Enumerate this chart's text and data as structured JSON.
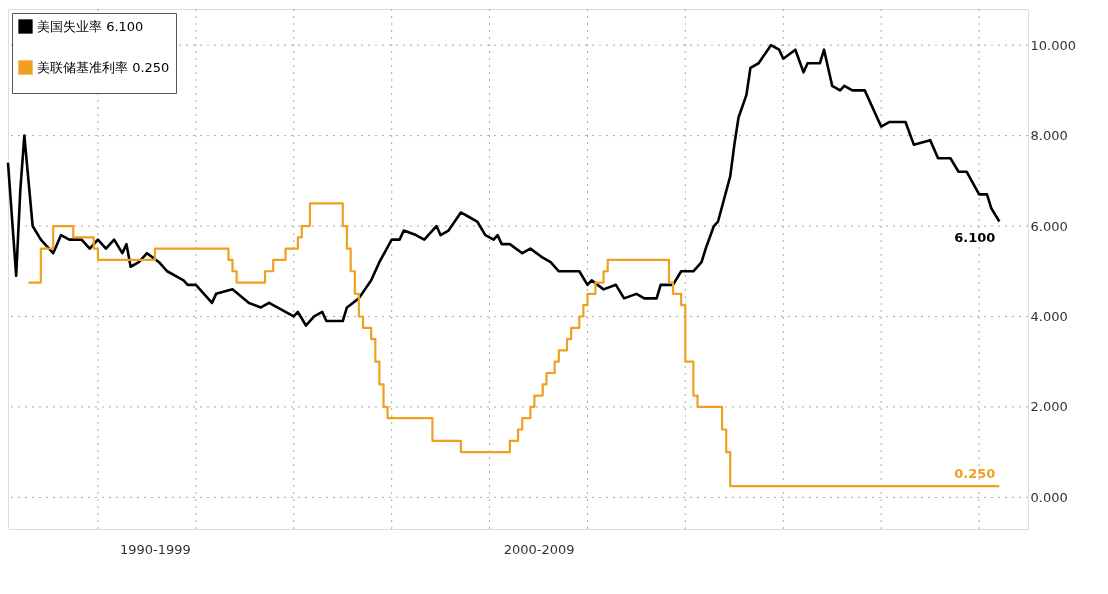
{
  "chart_data": {
    "type": "line",
    "xlim": [
      "1994-03",
      "2015-01"
    ],
    "xticks": [
      {
        "value": "1996",
        "label": null
      },
      {
        "value": "1997-03",
        "label": "1990-1999"
      },
      {
        "value": "1998",
        "label": null
      },
      {
        "value": "2000",
        "label": null
      },
      {
        "value": "2002",
        "label": null
      },
      {
        "value": "2004",
        "label": null
      },
      {
        "value": "2005-01",
        "label": "2000-2009"
      },
      {
        "value": "2006",
        "label": null
      },
      {
        "value": "2008",
        "label": null
      },
      {
        "value": "2010",
        "label": null
      },
      {
        "value": "2012",
        "label": null
      },
      {
        "value": "2014",
        "label": null
      }
    ],
    "ylim": [
      -0.7,
      10.8
    ],
    "yticks": [
      {
        "value": 0,
        "label": "0.000"
      },
      {
        "value": 2,
        "label": "2.000"
      },
      {
        "value": 4,
        "label": "4.000"
      },
      {
        "value": 6,
        "label": "6.000"
      },
      {
        "value": 8,
        "label": "8.000"
      },
      {
        "value": 10,
        "label": "10.000"
      }
    ],
    "grid": true,
    "legend": "top left",
    "line_style": "solid",
    "marker": "none",
    "annotations": [
      {
        "text": "6.100",
        "x": "2014-06",
        "y": 6.1
      },
      {
        "text": "0.250",
        "x": "2014-06",
        "y": 0.25
      }
    ],
    "series": [
      {
        "name": "美国失业率 6.100",
        "color": "#000000",
        "type": "line",
        "x": [
          "1994-03",
          "1994-05",
          "1994-06",
          "1994-07",
          "1994-08",
          "1994-09",
          "1994-11",
          "1995-02",
          "1995-04",
          "1995-06",
          "1995-09",
          "1995-11",
          "1996-01",
          "1996-03",
          "1996-05",
          "1996-07",
          "1996-08",
          "1996-09",
          "1996-11",
          "1997-01",
          "1997-04",
          "1997-06",
          "1997-10",
          "1997-11",
          "1998-01",
          "1998-05",
          "1998-06",
          "1998-10",
          "1999-02",
          "1999-05",
          "1999-07",
          "2000-01",
          "2000-02",
          "2000-04",
          "2000-06",
          "2000-08",
          "2000-09",
          "2001-01",
          "2001-02",
          "2001-05",
          "2001-08",
          "2001-10",
          "2002-01",
          "2002-03",
          "2002-04",
          "2002-07",
          "2002-09",
          "2002-12",
          "2003-01",
          "2003-03",
          "2003-06",
          "2003-08",
          "2003-10",
          "2003-12",
          "2004-02",
          "2004-03",
          "2004-04",
          "2004-06",
          "2004-09",
          "2004-11",
          "2005-02",
          "2005-04",
          "2005-06",
          "2005-08",
          "2005-11",
          "2006-01",
          "2006-02",
          "2006-05",
          "2006-08",
          "2006-10",
          "2007-01",
          "2007-03",
          "2007-06",
          "2007-07",
          "2007-10",
          "2007-12",
          "2008-03",
          "2008-05",
          "2008-06",
          "2008-08",
          "2008-09",
          "2008-12",
          "2009-01",
          "2009-02",
          "2009-04",
          "2009-05",
          "2009-07",
          "2009-10",
          "2009-12",
          "2010-01",
          "2010-04",
          "2010-06",
          "2010-07",
          "2010-10",
          "2010-11",
          "2011-01",
          "2011-03",
          "2011-04",
          "2011-06",
          "2011-09",
          "2012-01",
          "2012-03",
          "2012-07",
          "2012-09",
          "2013-01",
          "2013-03",
          "2013-06",
          "2013-08",
          "2013-10",
          "2014-01",
          "2014-03",
          "2014-04",
          "2014-06"
        ],
        "values": [
          7.4,
          4.9,
          6.8,
          8.0,
          7.0,
          6.0,
          5.7,
          5.4,
          5.8,
          5.7,
          5.7,
          5.5,
          5.7,
          5.5,
          5.7,
          5.4,
          5.6,
          5.1,
          5.2,
          5.4,
          5.2,
          5.0,
          4.8,
          4.7,
          4.7,
          4.3,
          4.5,
          4.6,
          4.3,
          4.2,
          4.3,
          4.0,
          4.1,
          3.8,
          4.0,
          4.1,
          3.9,
          3.9,
          4.2,
          4.4,
          4.8,
          5.2,
          5.7,
          5.7,
          5.9,
          5.8,
          5.7,
          6.0,
          5.8,
          5.9,
          6.3,
          6.2,
          6.1,
          5.8,
          5.7,
          5.8,
          5.6,
          5.6,
          5.4,
          5.5,
          5.3,
          5.2,
          5.0,
          5.0,
          5.0,
          4.7,
          4.8,
          4.6,
          4.7,
          4.4,
          4.5,
          4.4,
          4.4,
          4.7,
          4.7,
          5.0,
          5.0,
          5.2,
          5.5,
          6.0,
          6.1,
          7.1,
          7.8,
          8.4,
          8.9,
          9.5,
          9.6,
          10.0,
          9.9,
          9.7,
          9.9,
          9.4,
          9.6,
          9.6,
          9.9,
          9.1,
          9.0,
          9.1,
          9.0,
          9.0,
          8.2,
          8.3,
          8.3,
          7.8,
          7.9,
          7.5,
          7.5,
          7.2,
          7.2,
          6.7,
          6.7,
          6.4,
          6.1
        ]
      },
      {
        "name": "美联储基准利率 0.250",
        "color": "#f0a020",
        "type": "step",
        "x": [
          "1994-08",
          "1994-11",
          "1995-02",
          "1995-07",
          "1995-12",
          "1996-01",
          "1997-03",
          "1998-09",
          "1998-10",
          "1998-11",
          "1999-06",
          "1999-08",
          "1999-11",
          "2000-02",
          "2000-03",
          "2000-05",
          "2001-01",
          "2001-02",
          "2001-03",
          "2001-04",
          "2001-05",
          "2001-06",
          "2001-08",
          "2001-09",
          "2001-10",
          "2001-11",
          "2001-12",
          "2002-11",
          "2003-06",
          "2004-06",
          "2004-08",
          "2004-09",
          "2004-11",
          "2004-12",
          "2005-02",
          "2005-03",
          "2005-05",
          "2005-06",
          "2005-08",
          "2005-09",
          "2005-11",
          "2005-12",
          "2006-01",
          "2006-03",
          "2006-05",
          "2006-06",
          "2007-09",
          "2007-10",
          "2007-12",
          "2008-01",
          "2008-03",
          "2008-04",
          "2008-10",
          "2008-11",
          "2008-12",
          "2014-06"
        ],
        "values": [
          4.75,
          5.5,
          6.0,
          5.75,
          5.5,
          5.25,
          5.5,
          5.25,
          5.0,
          4.75,
          5.0,
          5.25,
          5.5,
          5.75,
          6.0,
          6.5,
          6.0,
          5.5,
          5.0,
          4.5,
          4.0,
          3.75,
          3.5,
          3.0,
          2.5,
          2.0,
          1.75,
          1.25,
          1.0,
          1.25,
          1.5,
          1.75,
          2.0,
          2.25,
          2.5,
          2.75,
          3.0,
          3.25,
          3.5,
          3.75,
          4.0,
          4.25,
          4.5,
          4.75,
          5.0,
          5.25,
          4.75,
          4.5,
          4.25,
          3.0,
          2.25,
          2.0,
          1.5,
          1.0,
          0.25,
          0.25
        ]
      }
    ]
  }
}
